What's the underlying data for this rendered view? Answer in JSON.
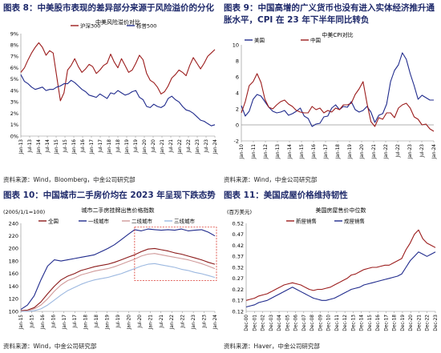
{
  "charts": [
    {
      "figure_title": "图表 8：中美股市表现的差异部分来源于风险溢价的分化",
      "source": "资料来源：Wind，Bloomberg，中金公司研究部",
      "chart_data": {
        "type": "line",
        "title": "中美风险溢价对比",
        "y_ticks": [
          "0%",
          "1%",
          "2%",
          "3%",
          "4%",
          "5%",
          "6%",
          "7%",
          "8%",
          "9%"
        ],
        "ylim": [
          0,
          9
        ],
        "x_ticks": [
          "Jan-13",
          "Jul-13",
          "Jan-14",
          "Jul-14",
          "Jan-15",
          "Jul-15",
          "Jan-16",
          "Jul-16",
          "Jan-17",
          "Jul-17",
          "Jan-18",
          "Jul-18",
          "Jan-19",
          "Jul-19",
          "Jan-20",
          "Jul-20",
          "Jan-21",
          "Jul-21",
          "Jan-22",
          "Jul-22",
          "Jan-23",
          "Jul-23",
          "Jan-24"
        ],
        "legend": "top",
        "series": [
          {
            "name": "沪深300",
            "color": "#9b1c1c",
            "values": [
              5.6,
              6.0,
              6.7,
              7.3,
              7.8,
              8.2,
              7.8,
              7.1,
              7.5,
              7.3,
              5.2,
              3.1,
              3.8,
              5.8,
              6.2,
              6.8,
              6.1,
              5.6,
              5.9,
              6.3,
              6.1,
              5.5,
              5.8,
              6.2,
              6.4,
              7.2,
              6.5,
              6.0,
              6.8,
              6.2,
              5.6,
              5.8,
              6.4,
              7.1,
              6.7,
              5.5,
              4.9,
              4.7,
              4.3,
              3.7,
              3.9,
              4.4,
              5.1,
              5.4,
              5.8,
              5.6,
              5.3,
              6.2,
              6.9,
              6.4,
              5.9,
              6.4,
              7.0,
              7.3,
              7.6
            ]
          },
          {
            "name": "标普500",
            "color": "#1f2a8c",
            "values": [
              5.4,
              4.8,
              4.6,
              4.3,
              4.1,
              4.2,
              4.3,
              4.0,
              4.1,
              4.1,
              4.3,
              4.4,
              4.6,
              4.6,
              4.9,
              4.7,
              4.4,
              4.1,
              3.9,
              3.6,
              3.5,
              3.4,
              3.7,
              3.5,
              3.3,
              3.8,
              3.7,
              4.0,
              3.8,
              3.6,
              3.7,
              3.9,
              4.0,
              3.4,
              3.2,
              2.6,
              2.5,
              2.8,
              2.6,
              2.5,
              2.7,
              3.3,
              3.5,
              3.2,
              3.0,
              2.6,
              2.3,
              2.2,
              2.0,
              1.7,
              1.4,
              1.3,
              1.1,
              0.9,
              1.0
            ]
          }
        ]
      }
    },
    {
      "figure_title": "图表 9：中国高增的广义货币也没有进入实体经济推升通胀水平，CPI 在 23 年下半年同比转负",
      "figure_title_line1": "图表 9：中国高增的广义货币也没有进入实体经济推升通",
      "figure_title_line2": "胀水平，CPI 在 23 年下半年同比转负",
      "source": "资料来源：Wind，中金公司研究部",
      "chart_data": {
        "type": "line",
        "title": "中美CPI对比",
        "y_ticks": [
          "-2",
          "0",
          "2",
          "4",
          "6",
          "8",
          "10"
        ],
        "ylim": [
          -2,
          10
        ],
        "x_ticks": [
          "Jan-10",
          "Jan-11",
          "Jan-12",
          "Jan-13",
          "Jan-14",
          "Jan-15",
          "Jan-16",
          "Jan-17",
          "Jan-18",
          "Jan-19",
          "Jan-20",
          "Jan-21",
          "Jan-22",
          "Jul-22",
          "Jan-23",
          "Jul-23",
          "Jan-24"
        ],
        "legend": "top",
        "series": [
          {
            "name": "美国",
            "color": "#1f2a8c",
            "values": [
              2.4,
              1.1,
              1.7,
              3.2,
              3.8,
              3.6,
              2.9,
              2.2,
              1.7,
              1.5,
              1.6,
              1.8,
              1.2,
              1.4,
              1.7,
              2.1,
              1.1,
              0.8,
              -0.2,
              0.1,
              0.2,
              1.0,
              1.1,
              2.1,
              2.5,
              1.9,
              2.3,
              2.2,
              2.9,
              1.9,
              1.6,
              1.8,
              2.3,
              1.6,
              0.3,
              1.2,
              1.4,
              2.6,
              5.4,
              6.8,
              7.5,
              9.0,
              8.2,
              6.4,
              4.9,
              3.2,
              3.7,
              3.4,
              3.1,
              3.1
            ]
          },
          {
            "name": "中国",
            "color": "#9b1c1c",
            "values": [
              1.5,
              2.9,
              4.9,
              5.4,
              6.4,
              5.3,
              3.2,
              2.2,
              2.0,
              2.5,
              2.9,
              3.1,
              2.6,
              2.3,
              1.8,
              1.6,
              1.5,
              1.5,
              2.3,
              1.9,
              2.1,
              1.5,
              1.8,
              1.6,
              2.1,
              1.9,
              2.5,
              2.5,
              2.7,
              3.8,
              4.5,
              5.4,
              2.7,
              0.4,
              -0.2,
              0.9,
              0.7,
              1.5,
              1.5,
              0.9,
              2.1,
              2.5,
              2.7,
              2.1,
              1.0,
              0.7,
              0.0,
              0.1,
              -0.5,
              -0.8
            ]
          }
        ]
      }
    },
    {
      "figure_title": "图表 10：中国城市二手房价均在 2023 年呈现下跌态势",
      "source": "资料来源：Wind，中金公司研究部",
      "chart_data": {
        "type": "line",
        "title": "城市二手房挂牌出售价格指数",
        "ylabel": "(2005/1/1=100)",
        "y_ticks": [
          "100",
          "120",
          "140",
          "160",
          "180",
          "200",
          "220",
          "240"
        ],
        "ylim": [
          100,
          240
        ],
        "x_ticks": [
          "Jan-15",
          "Jul-15",
          "Jan-16",
          "Jul-16",
          "Jan-17",
          "Jul-17",
          "Jan-18",
          "Jul-18",
          "Jan-19",
          "Jul-19",
          "Jan-20",
          "Jul-20",
          "Jan-21",
          "Jul-21",
          "Jan-22",
          "Jul-22",
          "Jan-23",
          "Jul-23",
          "Jan-24"
        ],
        "legend": "top",
        "annotation": "dashed-red-box",
        "series": [
          {
            "name": "全国",
            "color": "#8b1a1a",
            "values": [
              101,
              102,
              106,
              115,
              128,
              140,
              150,
              156,
              160,
              165,
              168,
              171,
              173,
              175,
              178,
              182,
              186,
              190,
              195,
              199,
              200,
              198,
              196,
              193,
              191,
              188,
              185,
              182,
              178,
              175
            ]
          },
          {
            "name": "一线城市",
            "color": "#1f2a8c",
            "values": [
              103,
              110,
              125,
              150,
              172,
              182,
              180,
              182,
              184,
              186,
              188,
              190,
              195,
              200,
              206,
              214,
              222,
              230,
              228,
              231,
              230,
              229,
              230,
              229,
              231,
              228,
              229,
              230,
              226,
              220
            ]
          },
          {
            "name": "二线城市",
            "color": "#d09a9a",
            "values": [
              100,
              101,
              104,
              110,
              120,
              132,
              142,
              149,
              153,
              158,
              161,
              164,
              166,
              168,
              171,
              175,
              179,
              183,
              188,
              191,
              192,
              190,
              188,
              186,
              184,
              182,
              179,
              176,
              172,
              168
            ]
          },
          {
            "name": "三线城市",
            "color": "#9cb8e0",
            "values": [
              100,
              100,
              101,
              104,
              110,
              118,
              126,
              133,
              138,
              143,
              147,
              150,
              152,
              154,
              157,
              160,
              164,
              168,
              172,
              175,
              176,
              174,
              172,
              170,
              167,
              165,
              162,
              160,
              157,
              154
            ]
          }
        ]
      }
    },
    {
      "figure_title": "图表 11：美国成屋价格维持韧性",
      "source": "资料来源：Haver，中金公司研究部",
      "chart_data": {
        "type": "line",
        "title": "美国房屋售价中位数",
        "ylabel": "(百万美元)",
        "y_ticks": [
          "0.12",
          "0.17",
          "0.22",
          "0.27",
          "0.32",
          "0.37",
          "0.42",
          "0.47",
          "0.52"
        ],
        "ylim": [
          0.12,
          0.52
        ],
        "x_ticks": [
          "Dec-00",
          "Dec-01",
          "Dec-02",
          "Dec-03",
          "Dec-04",
          "Dec-05",
          "Dec-06",
          "Dec-07",
          "Dec-08",
          "Dec-09",
          "Dec-10",
          "Dec-11",
          "Dec-12",
          "Dec-13",
          "Dec-14",
          "Dec-15",
          "Dec-16",
          "Dec-17",
          "Dec-18",
          "Dec-19",
          "Dec-20",
          "Dec-21",
          "Dec-22",
          "Dec-23"
        ],
        "legend": "top",
        "series": [
          {
            "name": "新屋销售",
            "color": "#9b1c1c",
            "values": [
              0.17,
              0.175,
              0.18,
              0.19,
              0.195,
              0.2,
              0.21,
              0.22,
              0.23,
              0.24,
              0.245,
              0.25,
              0.245,
              0.24,
              0.23,
              0.22,
              0.215,
              0.22,
              0.22,
              0.225,
              0.23,
              0.24,
              0.25,
              0.26,
              0.27,
              0.285,
              0.29,
              0.3,
              0.31,
              0.315,
              0.32,
              0.32,
              0.325,
              0.33,
              0.33,
              0.34,
              0.35,
              0.36,
              0.4,
              0.43,
              0.47,
              0.49,
              0.45,
              0.43,
              0.42,
              0.41
            ]
          },
          {
            "name": "成屋销售",
            "color": "#1f2a8c",
            "values": [
              0.14,
              0.145,
              0.15,
              0.16,
              0.165,
              0.17,
              0.18,
              0.19,
              0.2,
              0.21,
              0.22,
              0.23,
              0.22,
              0.21,
              0.2,
              0.19,
              0.18,
              0.175,
              0.17,
              0.17,
              0.175,
              0.18,
              0.19,
              0.2,
              0.21,
              0.22,
              0.225,
              0.23,
              0.24,
              0.245,
              0.25,
              0.255,
              0.26,
              0.265,
              0.27,
              0.275,
              0.28,
              0.29,
              0.32,
              0.35,
              0.37,
              0.39,
              0.38,
              0.37,
              0.38,
              0.39
            ]
          }
        ]
      }
    }
  ]
}
